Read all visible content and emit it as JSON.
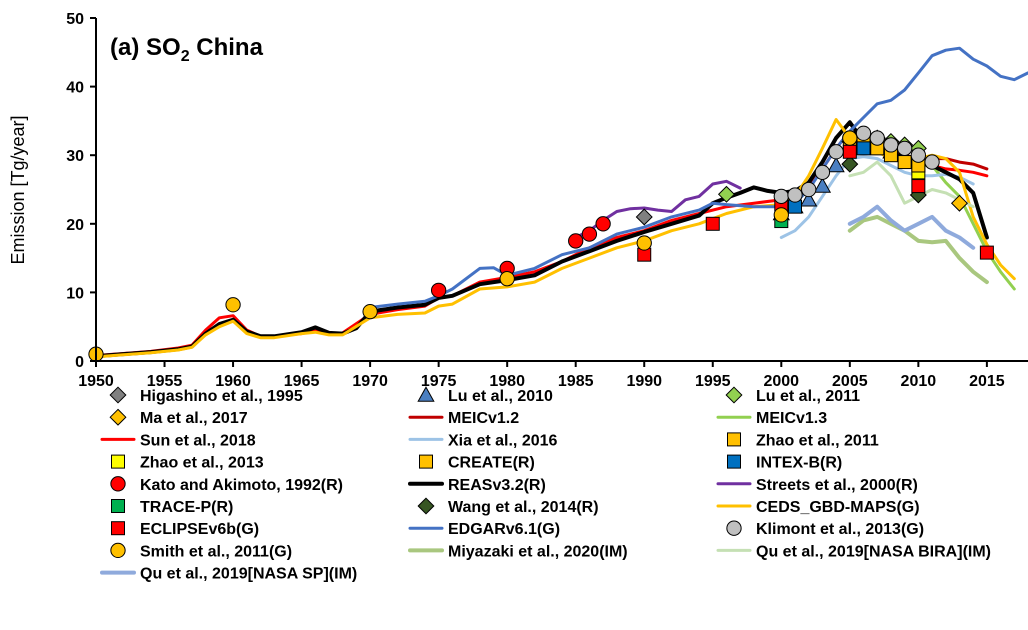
{
  "chart_data": {
    "type": "line",
    "title_main": "(a) SO",
    "title_sub": "2",
    "title_suffix": " China",
    "xlabel": "",
    "ylabel": "Emission [Tg/year]",
    "xlim": [
      1950,
      2018
    ],
    "ylim": [
      0,
      50
    ],
    "xticks": [
      1950,
      1955,
      1960,
      1965,
      1970,
      1975,
      1980,
      1985,
      1990,
      1995,
      2000,
      2005,
      2010,
      2015
    ],
    "yticks": [
      0,
      10,
      20,
      30,
      40,
      50
    ],
    "grid": false,
    "legend_placement": "bottom",
    "series": [
      {
        "name": "Higashino et al., 1995",
        "kind": "marker",
        "marker": "diamond",
        "color": "#808080",
        "x": [
          1990
        ],
        "y": [
          21
        ]
      },
      {
        "name": "Lu et al., 2010",
        "kind": "marker",
        "marker": "triangle",
        "color": "#4a7fc1",
        "x": [
          2000,
          2001,
          2002,
          2003,
          2004,
          2005,
          2006,
          2007,
          2008
        ],
        "y": [
          21.5,
          22.5,
          23.5,
          25.5,
          28.5,
          31,
          31.5,
          31,
          30.5
        ]
      },
      {
        "name": "Lu et al., 2011",
        "kind": "marker",
        "marker": "diamond",
        "color": "#92d050",
        "x": [
          1996,
          2005,
          2006,
          2007,
          2008,
          2009,
          2010
        ],
        "y": [
          24.3,
          32,
          33,
          32.5,
          32,
          31.5,
          31
        ]
      },
      {
        "name": "Ma et al., 2017",
        "kind": "marker",
        "marker": "diamond",
        "color": "#ffc000",
        "x": [
          2013
        ],
        "y": [
          23
        ]
      },
      {
        "name": "MEICv1.2",
        "kind": "line",
        "color": "#c00000",
        "width": 3,
        "x": [
          2008,
          2009,
          2010,
          2011,
          2012,
          2013,
          2014,
          2015
        ],
        "y": [
          30.5,
          30,
          29.5,
          29.5,
          29.5,
          29,
          28.7,
          28
        ]
      },
      {
        "name": "MEICv1.3",
        "kind": "line",
        "color": "#92d050",
        "width": 3,
        "x": [
          2010,
          2011,
          2012,
          2013,
          2014,
          2015,
          2016,
          2017
        ],
        "y": [
          28.5,
          28.5,
          26,
          24,
          20,
          16,
          13,
          10.5
        ]
      },
      {
        "name": "Sun et al., 2018",
        "kind": "line",
        "color": "#ff0000",
        "width": 3,
        "x": [
          1950,
          1952,
          1954,
          1956,
          1957,
          1958,
          1959,
          1960,
          1961,
          1962,
          1963,
          1965,
          1966,
          1967,
          1968,
          1970,
          1972,
          1974,
          1975,
          1976,
          1978,
          1980,
          1982,
          1984,
          1986,
          1988,
          1990,
          1992,
          1994,
          1996,
          1998,
          2000,
          2001,
          2002,
          2003,
          2004,
          2005,
          2006,
          2007,
          2008,
          2009,
          2010,
          2011,
          2012,
          2013,
          2014,
          2015
        ],
        "y": [
          0.8,
          1.1,
          1.4,
          1.9,
          2.3,
          4.5,
          6.3,
          6.6,
          4.5,
          3.6,
          3.6,
          4.0,
          4.4,
          4.0,
          4.1,
          6.8,
          7.5,
          8.0,
          9.2,
          9.5,
          11.5,
          12.2,
          13.0,
          14.5,
          16.5,
          18.0,
          19.0,
          20.5,
          21.5,
          22.5,
          23.0,
          23.5,
          24.0,
          25.5,
          28.0,
          31.0,
          33.5,
          32.5,
          31.5,
          30.0,
          29.5,
          29.0,
          28.5,
          28.0,
          27.8,
          27.5,
          27.0
        ]
      },
      {
        "name": "Xia et al., 2016",
        "kind": "line",
        "color": "#9dc3e6",
        "width": 3,
        "x": [
          2000,
          2001,
          2002,
          2003,
          2004,
          2005,
          2006,
          2007,
          2008,
          2009,
          2010,
          2011,
          2012,
          2013,
          2014
        ],
        "y": [
          18.0,
          19.0,
          21.0,
          24.0,
          27.0,
          29.5,
          29.8,
          29.5,
          28.5,
          27.5,
          27.0,
          27.0,
          27.2,
          26.8,
          25.8
        ]
      },
      {
        "name": "Zhao et al., 2011",
        "kind": "marker",
        "marker": "square",
        "color": "#ffc000",
        "x": [
          2005,
          2006,
          2007,
          2008,
          2009
        ],
        "y": [
          31,
          32,
          31,
          30,
          29
        ]
      },
      {
        "name": "Zhao et al., 2013",
        "kind": "marker",
        "marker": "square",
        "color": "#ffff00",
        "x": [
          2010
        ],
        "y": [
          27.5
        ]
      },
      {
        "name": "CREATE(R)",
        "kind": "marker",
        "marker": "square",
        "color": "#ffc000",
        "x": [
          2010
        ],
        "y": [
          28.5
        ]
      },
      {
        "name": "INTEX-B(R)",
        "kind": "marker",
        "marker": "square",
        "color": "#0070c0",
        "x": [
          2001,
          2006
        ],
        "y": [
          22.5,
          31
        ]
      },
      {
        "name": "Kato and Akimoto, 1992(R)",
        "kind": "marker",
        "marker": "circle",
        "color": "#ff0000",
        "x": [
          1975,
          1980,
          1985,
          1986,
          1987
        ],
        "y": [
          10.3,
          13.5,
          17.5,
          18.5,
          20.0
        ]
      },
      {
        "name": "REASv3.2(R)",
        "kind": "line",
        "color": "#000000",
        "width": 4,
        "x": [
          1950,
          1952,
          1954,
          1956,
          1957,
          1958,
          1959,
          1960,
          1961,
          1962,
          1963,
          1965,
          1966,
          1967,
          1968,
          1969,
          1970,
          1972,
          1974,
          1975,
          1976,
          1978,
          1980,
          1982,
          1984,
          1986,
          1988,
          1990,
          1992,
          1994,
          1995,
          1996,
          1997,
          1998,
          1999,
          2000,
          2001,
          2002,
          2003,
          2004,
          2005,
          2006,
          2007,
          2008,
          2009,
          2010,
          2011,
          2012,
          2013,
          2014,
          2015
        ],
        "y": [
          0.7,
          1.0,
          1.3,
          1.7,
          2.1,
          4.0,
          5.4,
          6.0,
          4.3,
          3.6,
          3.6,
          4.2,
          4.9,
          4.1,
          4.0,
          4.8,
          7.2,
          7.8,
          8.2,
          9.2,
          9.5,
          11.2,
          11.8,
          12.5,
          14.5,
          16.0,
          17.5,
          18.8,
          20.0,
          21.2,
          23.0,
          23.8,
          24.5,
          25.3,
          24.8,
          24.5,
          24.8,
          26.0,
          29.0,
          32.5,
          34.8,
          32.0,
          31.5,
          30.5,
          29.5,
          29.0,
          28.5,
          27.5,
          26.5,
          24.5,
          18.0
        ]
      },
      {
        "name": "Streets et al., 2000(R)",
        "kind": "line",
        "color": "#7030a0",
        "width": 3,
        "x": [
          1985,
          1986,
          1987,
          1988,
          1989,
          1990,
          1991,
          1992,
          1993,
          1994,
          1995,
          1996,
          1997
        ],
        "y": [
          18.0,
          19.0,
          20.5,
          21.8,
          22.2,
          22.3,
          22.0,
          21.8,
          23.5,
          24.0,
          25.8,
          26.2,
          25.2
        ]
      },
      {
        "name": "TRACE-P(R)",
        "kind": "marker",
        "marker": "square",
        "color": "#00b050",
        "x": [
          2000
        ],
        "y": [
          20.4
        ]
      },
      {
        "name": "Wang et al., 2014(R)",
        "kind": "marker",
        "marker": "diamond",
        "color": "#375623",
        "x": [
          2005,
          2010
        ],
        "y": [
          28.7,
          24.2
        ]
      },
      {
        "name": "CEDS_GBD-MAPS(G)",
        "kind": "line",
        "color": "#ffc000",
        "width": 3,
        "x": [
          1950,
          1952,
          1954,
          1956,
          1957,
          1958,
          1959,
          1960,
          1961,
          1962,
          1963,
          1965,
          1966,
          1967,
          1968,
          1970,
          1972,
          1974,
          1975,
          1976,
          1978,
          1980,
          1982,
          1984,
          1986,
          1988,
          1990,
          1992,
          1994,
          1996,
          1998,
          2000,
          2001,
          2002,
          2003,
          2004,
          2005,
          2006,
          2007,
          2008,
          2009,
          2010,
          2011,
          2012,
          2013,
          2014,
          2015,
          2016,
          2017
        ],
        "y": [
          0.6,
          0.9,
          1.2,
          1.6,
          2.0,
          3.8,
          5.0,
          5.8,
          4.0,
          3.4,
          3.4,
          4.0,
          4.2,
          3.8,
          3.8,
          6.3,
          6.8,
          7.0,
          8.0,
          8.3,
          10.5,
          10.8,
          11.5,
          13.5,
          15.0,
          16.5,
          17.5,
          19.0,
          20.0,
          21.5,
          22.5,
          22.8,
          24.0,
          27.0,
          31.0,
          35.2,
          32.5,
          31.5,
          30.5,
          29.5,
          29.0,
          29.5,
          30.0,
          29.5,
          27.5,
          21.0,
          17.0,
          14.0,
          12.0
        ]
      },
      {
        "name": "ECLIPSEv6b(G)",
        "kind": "marker",
        "marker": "square",
        "color": "#ff0000",
        "x": [
          1990,
          1995,
          2000,
          2005,
          2010,
          2015
        ],
        "y": [
          15.5,
          20.0,
          22.8,
          30.5,
          25.5,
          15.8
        ]
      },
      {
        "name": "EDGARv6.1(G)",
        "kind": "line",
        "color": "#4472c4",
        "width": 3,
        "x": [
          1970,
          1972,
          1974,
          1975,
          1976,
          1978,
          1979,
          1980,
          1982,
          1984,
          1986,
          1988,
          1990,
          1992,
          1994,
          1995,
          1996,
          1998,
          2000,
          2001,
          2002,
          2003,
          2004,
          2005,
          2006,
          2007,
          2008,
          2009,
          2010,
          2011,
          2012,
          2013,
          2014,
          2015,
          2016,
          2017,
          2018
        ],
        "y": [
          7.8,
          8.3,
          8.7,
          9.5,
          10.5,
          13.5,
          13.6,
          12.5,
          13.5,
          15.5,
          16.5,
          18.5,
          19.5,
          21.0,
          22.0,
          23.0,
          22.8,
          22.5,
          22.5,
          23.0,
          25.0,
          28.0,
          31.0,
          33.5,
          35.5,
          37.5,
          38.0,
          39.5,
          42.0,
          44.5,
          45.3,
          45.6,
          44.0,
          43.0,
          41.5,
          41.0,
          42.0
        ]
      },
      {
        "name": "Klimont et al., 2013(G)",
        "kind": "marker",
        "marker": "circle",
        "color": "#c0c0c0",
        "x": [
          2000,
          2001,
          2002,
          2003,
          2004,
          2005,
          2006,
          2007,
          2008,
          2009,
          2010,
          2011
        ],
        "y": [
          24,
          24.2,
          25,
          27.5,
          30.5,
          32.5,
          33.2,
          32.5,
          31.5,
          31,
          30,
          29
        ]
      },
      {
        "name": "Smith et al., 2011(G)",
        "kind": "marker",
        "marker": "circle",
        "color": "#ffc000",
        "x": [
          1950,
          1960,
          1970,
          1980,
          1990,
          2000,
          2005
        ],
        "y": [
          1.0,
          8.2,
          7.2,
          12.0,
          17.2,
          21.3,
          32.5
        ]
      },
      {
        "name": "Miyazaki et al., 2020(IM)",
        "kind": "line",
        "color": "#a9c77f",
        "width": 4,
        "x": [
          2005,
          2006,
          2007,
          2008,
          2009,
          2010,
          2011,
          2012,
          2013,
          2014,
          2015
        ],
        "y": [
          19.0,
          20.5,
          21.0,
          20.0,
          19.0,
          17.5,
          17.3,
          17.5,
          15.0,
          13.0,
          11.5
        ]
      },
      {
        "name": "Qu et al., 2019[NASA BIRA](IM)",
        "kind": "line",
        "color": "#c5e0b4",
        "width": 3,
        "x": [
          2005,
          2006,
          2007,
          2008,
          2009,
          2010,
          2011,
          2012,
          2013,
          2014
        ],
        "y": [
          27.0,
          27.5,
          29.0,
          27.0,
          23.0,
          24.0,
          25.0,
          24.5,
          23.5,
          22.5
        ]
      },
      {
        "name": "Qu et al., 2019[NASA SP](IM)",
        "kind": "line",
        "color": "#8faadc",
        "width": 4,
        "x": [
          2005,
          2006,
          2007,
          2008,
          2009,
          2010,
          2011,
          2012,
          2013,
          2014
        ],
        "y": [
          20.0,
          21.0,
          22.5,
          20.5,
          19.0,
          20.0,
          21.0,
          19.0,
          18.0,
          16.5
        ]
      }
    ],
    "legend_order": [
      "Higashino et al., 1995",
      "Lu et al., 2010",
      "Lu et al., 2011",
      "Ma et al., 2017",
      "MEICv1.2",
      "MEICv1.3",
      "Sun et al., 2018",
      "Xia et al., 2016",
      "Zhao et al., 2011",
      "Zhao et al., 2013",
      "CREATE(R)",
      "INTEX-B(R)",
      "Kato and Akimoto, 1992(R)",
      "REASv3.2(R)",
      "Streets et al., 2000(R)",
      "TRACE-P(R)",
      "Wang et al., 2014(R)",
      "CEDS_GBD-MAPS(G)",
      "ECLIPSEv6b(G)",
      "EDGARv6.1(G)",
      "Klimont et al., 2013(G)",
      "Smith et al., 2011(G)",
      "Miyazaki et al., 2020(IM)",
      "Qu et al., 2019[NASA BIRA](IM)",
      "Qu et al., 2019[NASA SP](IM)"
    ]
  }
}
